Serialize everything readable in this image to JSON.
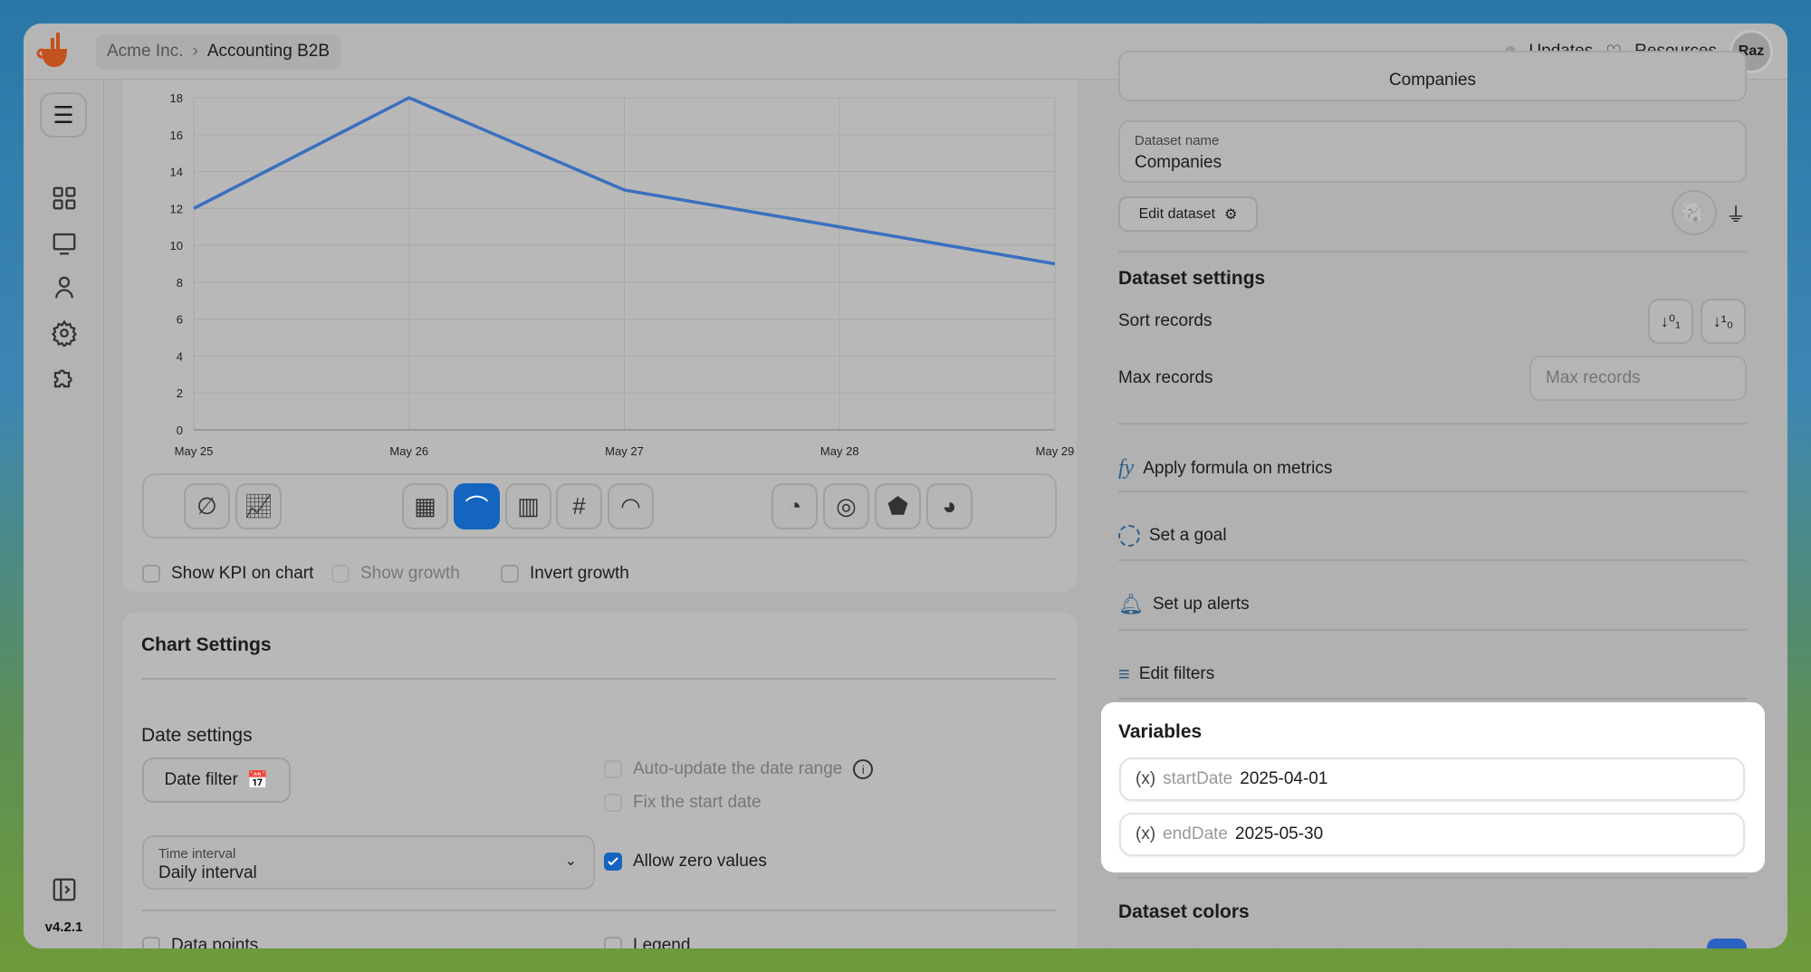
{
  "topbar": {
    "breadcrumb": [
      "Acme Inc.",
      "Accounting B2B"
    ],
    "updates": "Updates",
    "resources": "Resources",
    "avatar": "Raz"
  },
  "sidebar": {
    "icons": [
      "menu-icon",
      "dashboard-icon",
      "monitor-icon",
      "user-icon",
      "gear-icon",
      "puzzle-icon",
      "sidebar-toggle-icon"
    ],
    "version": "v4.2.1"
  },
  "chart_data": {
    "type": "line",
    "categories": [
      "May 25",
      "May 26",
      "May 27",
      "May 28",
      "May 29"
    ],
    "values": [
      12,
      18,
      13,
      11,
      9
    ],
    "ylim": [
      0,
      18
    ],
    "yticks": [
      0,
      2,
      4,
      6,
      8,
      10,
      12,
      14,
      16,
      18
    ],
    "grid": true,
    "color": "#3a6fc0"
  },
  "chart_types": [
    "no-chart-icon",
    "kpi-chart-icon",
    "table-icon",
    "line-chart-icon",
    "bar-chart-icon",
    "hash-icon",
    "gauge-icon",
    "pie-chart-icon",
    "doughnut-icon",
    "radar-icon",
    "polar-icon"
  ],
  "chart_type_selected": "line-chart-icon",
  "options": {
    "show_kpi": "Show KPI on chart",
    "show_growth": "Show growth",
    "invert_growth": "Invert growth"
  },
  "chart_settings": {
    "title": "Chart Settings",
    "date_settings": "Date settings",
    "date_filter": "Date filter",
    "auto_update": "Auto-update the date range",
    "fix_start": "Fix the start date",
    "time_interval_label": "Time interval",
    "time_interval_value": "Daily interval",
    "allow_zero": "Allow zero values",
    "allow_zero_checked": true,
    "data_points": "Data points",
    "legend": "Legend"
  },
  "dataset": {
    "top_tab": "Companies",
    "name_label": "Dataset name",
    "name_value": "Companies",
    "edit": "Edit dataset",
    "settings_title": "Dataset settings",
    "sort": "Sort records",
    "max": "Max records",
    "max_placeholder": "Max records",
    "formula": "Apply formula on metrics",
    "goal": "Set a goal",
    "alerts": "Set up alerts",
    "filters": "Edit filters",
    "colors_title": "Dataset colors"
  },
  "variables": {
    "title": "Variables",
    "items": [
      {
        "key": "startDate",
        "value": "2025-04-01"
      },
      {
        "key": "endDate",
        "value": "2025-05-30"
      }
    ]
  }
}
